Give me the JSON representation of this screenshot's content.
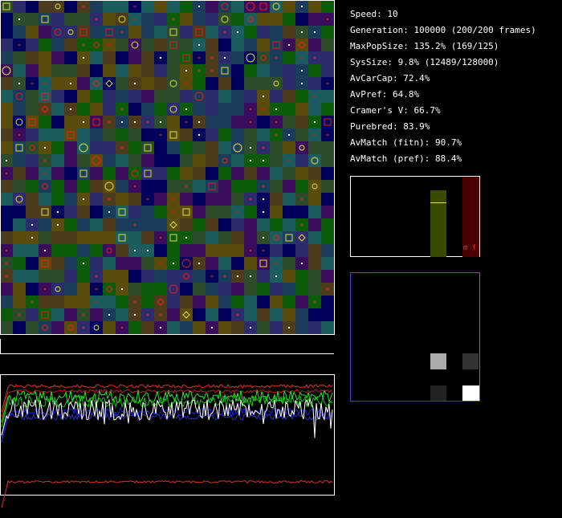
{
  "stats": [
    "Speed: 10",
    "Generation: 100000 (200/200 frames)",
    "MaxPopSize: 135.2% (169/125)",
    "SysSize: 9.8% (12489/128000)",
    "AvCarCap: 72.4%",
    "AvPref: 64.8%",
    "Cramer's V: 66.7%",
    "Purebred: 83.9%",
    "AvMatch (fitn): 90.7%",
    "AvMatch (pref): 88.4%"
  ],
  "bar_panel": {
    "label": "m f"
  }
}
